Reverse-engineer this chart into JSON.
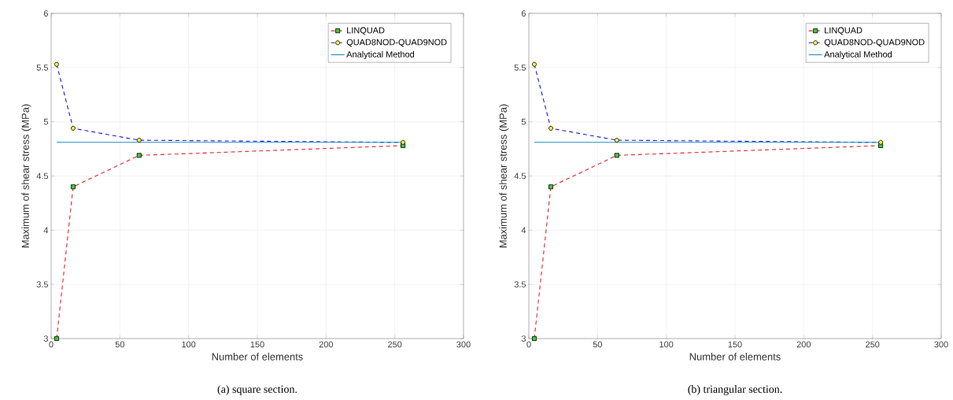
{
  "chart_data": [
    {
      "type": "line",
      "xlabel": "Number of elements",
      "ylabel": "Maximum of shear stress (MPa)",
      "annotations": [
        "(a) square section."
      ],
      "xlim": [
        0,
        300
      ],
      "ylim": [
        3,
        6
      ],
      "xticks": [
        0,
        50,
        100,
        150,
        200,
        250,
        300
      ],
      "yticks": [
        3,
        3.5,
        4,
        4.5,
        5,
        5.5,
        6
      ],
      "grid": true,
      "legend": "top right",
      "series": [
        {
          "name": "LINQUAD",
          "color": "#e3262a",
          "x": [
            4,
            16,
            64,
            256
          ],
          "values": [
            3.0,
            4.4,
            4.69,
            4.78
          ],
          "marker": "square",
          "line_style": "dashed"
        },
        {
          "name": "QUAD8NOD-QUAD9NOD",
          "color": "#1a1acc",
          "x": [
            4,
            16,
            64,
            256
          ],
          "values": [
            5.53,
            4.94,
            4.83,
            4.81
          ],
          "marker": "circle",
          "line_style": "dashed"
        },
        {
          "name": "Analytical Method",
          "color": "#1f8dc8",
          "x": [
            4,
            256
          ],
          "values": [
            4.81,
            4.81
          ],
          "marker": "none",
          "line_style": "solid"
        }
      ]
    },
    {
      "type": "line",
      "xlabel": "Number of elements",
      "ylabel": "Maximum of shear stress (MPa)",
      "annotations": [
        "(b) triangular section."
      ],
      "xlim": [
        0,
        300
      ],
      "ylim": [
        3,
        6
      ],
      "xticks": [
        0,
        50,
        100,
        150,
        200,
        250,
        300
      ],
      "yticks": [
        3,
        3.5,
        4,
        4.5,
        5,
        5.5,
        6
      ],
      "grid": true,
      "legend": "top right",
      "series": [
        {
          "name": "LINQUAD",
          "color": "#e3262a",
          "x": [
            4,
            16,
            64,
            256
          ],
          "values": [
            3.0,
            4.4,
            4.69,
            4.78
          ],
          "marker": "square",
          "line_style": "dashed"
        },
        {
          "name": "QUAD8NOD-QUAD9NOD",
          "color": "#1a1acc",
          "x": [
            4,
            16,
            64,
            256
          ],
          "values": [
            5.53,
            4.94,
            4.83,
            4.81
          ],
          "marker": "circle",
          "line_style": "dashed"
        },
        {
          "name": "Analytical Method",
          "color": "#1f8dc8",
          "x": [
            4,
            256
          ],
          "values": [
            4.81,
            4.81
          ],
          "marker": "none",
          "line_style": "solid"
        }
      ]
    }
  ]
}
